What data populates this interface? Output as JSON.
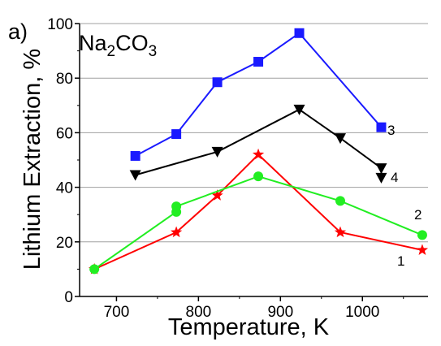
{
  "chart_data": {
    "type": "line",
    "panel_label": "a)",
    "title": "",
    "compound": {
      "main": "Na",
      "sub1": "2",
      "mid": "CO",
      "sub2": "3"
    },
    "xlabel": "Temperature, K",
    "ylabel": "Lithium Extraction, %",
    "xlim": [
      655,
      1080
    ],
    "ylim": [
      0,
      100
    ],
    "xticks": [
      700,
      800,
      900,
      1000
    ],
    "yticks": [
      0,
      20,
      40,
      60,
      80,
      100
    ],
    "grid": "horizontal",
    "series": [
      {
        "label": "1",
        "color": "#ff0000",
        "marker": "star",
        "x": [
          673,
          773,
          823,
          873,
          973,
          1073
        ],
        "y": [
          10,
          23.5,
          37,
          52,
          23.5,
          17
        ]
      },
      {
        "label": "2",
        "color": "#22ee22",
        "marker": "circle",
        "x": [
          673,
          773,
          773,
          873,
          973,
          1073
        ],
        "y": [
          10,
          31,
          33,
          44,
          35,
          22.5
        ]
      },
      {
        "label": "3",
        "color": "#1a1aff",
        "marker": "square",
        "x": [
          723,
          773,
          823,
          873,
          923,
          1023
        ],
        "y": [
          51.5,
          59.5,
          78.5,
          86,
          96.5,
          62
        ]
      },
      {
        "label": "4",
        "color": "#000000",
        "marker": "triangle-down",
        "x": [
          723,
          823,
          923,
          973,
          1023,
          1023
        ],
        "y": [
          44.5,
          53,
          68.5,
          58,
          47,
          43.5
        ]
      }
    ]
  }
}
